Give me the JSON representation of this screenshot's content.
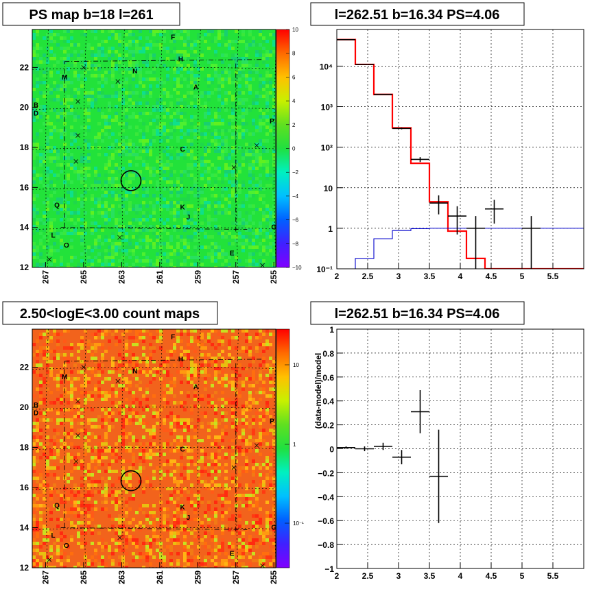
{
  "panels": {
    "ps_map": {
      "title": "PS map b=18 l=261",
      "x_ticks": [
        "267",
        "265",
        "263",
        "261",
        "259",
        "257",
        "255"
      ],
      "y_ticks": [
        "12",
        "14",
        "16",
        "18",
        "20",
        "22"
      ],
      "colorbar_ticks": [
        "10",
        "8",
        "6",
        "4",
        "2",
        "0",
        "−2",
        "−4",
        "−6",
        "−8",
        "−10"
      ],
      "colorbar_range": [
        -10,
        10
      ],
      "base_color": "#22e23a"
    },
    "spectrum": {
      "title": "l=262.51 b=16.34 PS=4.06"
    },
    "count_map": {
      "title": "2.50<logE<3.00 count maps",
      "x_ticks": [
        "267",
        "265",
        "263",
        "261",
        "259",
        "257",
        "255"
      ],
      "y_ticks": [
        "12",
        "14",
        "16",
        "18",
        "20",
        "22"
      ],
      "colorbar_ticks": [
        "10",
        "1",
        "10⁻¹"
      ],
      "colorbar_scale": "log",
      "base_color": "#f2631c"
    },
    "residual": {
      "title": "l=262.51 b=16.34 PS=4.06"
    }
  },
  "sources": [
    {
      "name": "F",
      "l": 260.3,
      "b": 23.4
    },
    {
      "name": "H",
      "l": 259.9,
      "b": 22.3
    },
    {
      "name": "N",
      "l": 262.3,
      "b": 21.7
    },
    {
      "name": "M",
      "l": 266.0,
      "b": 21.4
    },
    {
      "name": "A",
      "l": 259.1,
      "b": 20.9
    },
    {
      "name": "B",
      "l": 267.5,
      "b": 20.0
    },
    {
      "name": "D",
      "l": 267.5,
      "b": 19.6
    },
    {
      "name": "P",
      "l": 255.1,
      "b": 19.2
    },
    {
      "name": "C",
      "l": 259.8,
      "b": 17.8
    },
    {
      "name": "Q",
      "l": 266.4,
      "b": 15.0
    },
    {
      "name": "K",
      "l": 259.8,
      "b": 14.9
    },
    {
      "name": "J",
      "l": 259.5,
      "b": 14.4
    },
    {
      "name": "G",
      "l": 255.0,
      "b": 13.9
    },
    {
      "name": "L",
      "l": 266.6,
      "b": 13.5
    },
    {
      "name": "O",
      "l": 265.9,
      "b": 13.0
    },
    {
      "name": "E",
      "l": 257.2,
      "b": 12.6
    }
  ],
  "chart_data": [
    {
      "type": "heatmap",
      "title": "PS map b=18 l=261",
      "xlabel": "",
      "ylabel": "",
      "xlim": [
        267.7,
        254.9
      ],
      "ylim": [
        12,
        23.9
      ],
      "colorbar_range": [
        -10,
        10
      ],
      "markers": {
        "x_marks": [
          [
            266.8,
            12.4
          ],
          [
            265.0,
            22.0
          ],
          [
            263.2,
            21.3
          ],
          [
            265.3,
            20.3
          ],
          [
            265.3,
            18.6
          ],
          [
            265.4,
            17.3
          ],
          [
            255.9,
            18.1
          ],
          [
            257.1,
            17.0
          ],
          [
            263.1,
            13.5
          ],
          [
            255.6,
            12.1
          ]
        ],
        "circle": {
          "l": 262.51,
          "b": 16.34
        }
      }
    },
    {
      "type": "line",
      "title": "l=262.51 b=16.34 PS=4.06",
      "xlabel": "",
      "ylabel": "",
      "xlim": [
        2,
        6
      ],
      "ylim": [
        0.1,
        80000
      ],
      "yscale": "log",
      "x_ticks": [
        "2",
        "2.5",
        "3",
        "3.5",
        "4",
        "4.5",
        "5",
        "5.5"
      ],
      "y_ticks": [
        "10⁻¹",
        "1",
        "10",
        "10²",
        "10³",
        "10⁴"
      ],
      "series": [
        {
          "kind": "step",
          "color": "#ff0000",
          "edges": [
            2,
            2.3,
            2.6,
            2.9,
            3.2,
            3.5,
            3.8,
            4.1,
            4.4,
            4.7,
            5.0,
            5.3,
            6.0
          ],
          "values": [
            45000,
            11000,
            2000,
            300,
            40,
            4.5,
            0.85,
            0.18,
            0.1,
            0.1,
            0.1,
            0.1
          ]
        },
        {
          "kind": "step",
          "color": "#0000cc",
          "edges": [
            2,
            2.3,
            2.6,
            2.9,
            3.2,
            3.5,
            3.8,
            4.1,
            4.4,
            4.7,
            5.0,
            5.3,
            6.0
          ],
          "values": [
            0.1,
            0.18,
            0.55,
            0.88,
            0.98,
            1.0,
            1.0,
            1.0,
            1.0,
            1.0,
            1.0,
            1.0
          ]
        },
        {
          "kind": "points",
          "color": "#000000",
          "points": [
            {
              "x": 2.15,
              "y": 45000,
              "xerr": 0.15,
              "ylo": 44000,
              "yhi": 46000
            },
            {
              "x": 2.45,
              "y": 11000,
              "xerr": 0.15,
              "ylo": 10800,
              "yhi": 11200
            },
            {
              "x": 2.75,
              "y": 2000,
              "xerr": 0.15,
              "ylo": 1950,
              "yhi": 2050
            },
            {
              "x": 3.05,
              "y": 290,
              "xerr": 0.15,
              "ylo": 275,
              "yhi": 305
            },
            {
              "x": 3.35,
              "y": 50,
              "xerr": 0.15,
              "ylo": 43,
              "yhi": 57
            },
            {
              "x": 3.65,
              "y": 4.2,
              "xerr": 0.15,
              "ylo": 2.2,
              "yhi": 6.5
            },
            {
              "x": 3.95,
              "y": 2.0,
              "xerr": 0.15,
              "ylo": 0.7,
              "yhi": 3.5
            },
            {
              "x": 4.25,
              "y": 1.0,
              "xerr": 0.15,
              "ylo": 0.1,
              "yhi": 2.0
            },
            {
              "x": 4.55,
              "y": 3.0,
              "xerr": 0.15,
              "ylo": 1.3,
              "yhi": 5.0
            },
            {
              "x": 5.15,
              "y": 1.0,
              "xerr": 0.15,
              "ylo": 0.1,
              "yhi": 2.0
            }
          ]
        }
      ]
    },
    {
      "type": "heatmap",
      "title": "2.50<logE<3.00 count maps",
      "xlabel": "",
      "ylabel": "",
      "xlim": [
        267.7,
        254.9
      ],
      "ylim": [
        12,
        23.9
      ],
      "colorbar_scale": "log"
    },
    {
      "type": "scatter",
      "title": "l=262.51 b=16.34 PS=4.06",
      "xlabel": "",
      "ylabel": "(data-model)/model",
      "xlim": [
        2,
        6
      ],
      "ylim": [
        -1,
        1
      ],
      "x_ticks": [
        "2",
        "2.5",
        "3",
        "3.5",
        "4",
        "4.5",
        "5",
        "5.5"
      ],
      "y_ticks": [
        "−1",
        "−0.8",
        "−0.6",
        "−0.4",
        "−0.2",
        "0",
        "0.2",
        "0.4",
        "0.6",
        "0.8",
        "1"
      ],
      "points": [
        {
          "x": 2.15,
          "y": 0.01,
          "xerr": 0.15,
          "yerr": 0.01
        },
        {
          "x": 2.45,
          "y": 0.0,
          "xerr": 0.15,
          "yerr": 0.02
        },
        {
          "x": 2.75,
          "y": 0.02,
          "xerr": 0.15,
          "yerr": 0.03
        },
        {
          "x": 3.05,
          "y": -0.07,
          "xerr": 0.15,
          "yerr": 0.06
        },
        {
          "x": 3.35,
          "y": 0.31,
          "xerr": 0.15,
          "yerr": 0.18
        },
        {
          "x": 3.65,
          "y": -0.23,
          "xerr": 0.15,
          "yerr": 0.39
        }
      ]
    }
  ]
}
